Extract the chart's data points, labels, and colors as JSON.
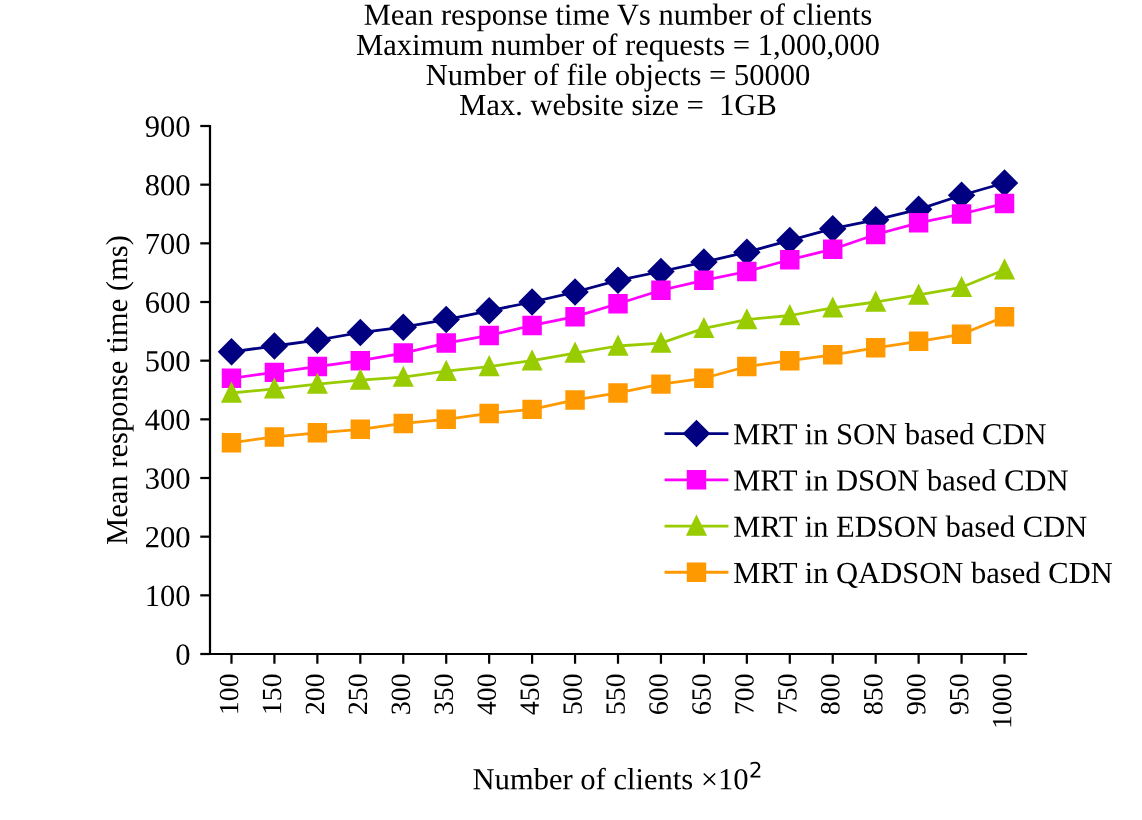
{
  "chart_data": {
    "type": "line",
    "title": "Mean response time Vs number of clients\nMaximum number of requests = 1,000,000\nNumber of file objects = 50000\nMax. website size =  1GB",
    "xlabel": "Number of clients ×10$^{2}$",
    "ylabel": "Mean response time (ms)",
    "categories": [
      "100",
      "150",
      "200",
      "250",
      "300",
      "350",
      "400",
      "450",
      "500",
      "550",
      "600",
      "650",
      "700",
      "750",
      "800",
      "850",
      "900",
      "950",
      "1000"
    ],
    "ylim": [
      0,
      900
    ],
    "yticks": [
      0,
      100,
      200,
      300,
      400,
      500,
      600,
      700,
      800,
      900
    ],
    "grid": false,
    "legend": "right",
    "line_style": "solid",
    "series": [
      {
        "name": "MRT in SON based CDN",
        "color": "#000080",
        "marker": "diamond",
        "values": [
          515,
          525,
          535,
          548,
          557,
          570,
          585,
          600,
          617,
          637,
          652,
          668,
          685,
          705,
          725,
          740,
          758,
          782,
          803
        ]
      },
      {
        "name": "MRT in DSON based CDN",
        "color": "#ff00ff",
        "marker": "square",
        "values": [
          470,
          480,
          490,
          500,
          513,
          530,
          543,
          560,
          575,
          597,
          620,
          637,
          652,
          672,
          690,
          715,
          735,
          750,
          768
        ]
      },
      {
        "name": "MRT in EDSON based CDN",
        "color": "#99cc00",
        "marker": "triangle",
        "values": [
          445,
          452,
          460,
          467,
          472,
          482,
          490,
          500,
          513,
          525,
          530,
          555,
          570,
          577,
          590,
          600,
          612,
          625,
          655
        ]
      },
      {
        "name": "MRT in QADSON based CDN",
        "color": "#ff9900",
        "marker": "square",
        "values": [
          360,
          370,
          377,
          383,
          393,
          400,
          410,
          417,
          433,
          445,
          460,
          470,
          490,
          500,
          510,
          522,
          533,
          545,
          575
        ]
      }
    ]
  }
}
